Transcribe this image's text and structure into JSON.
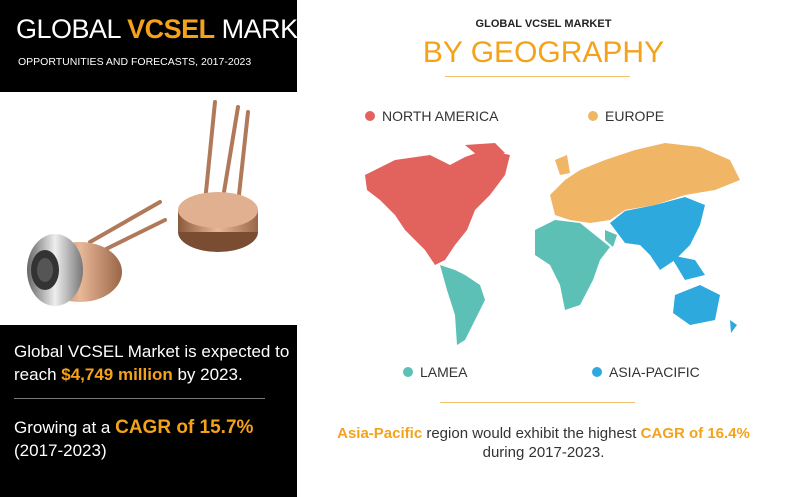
{
  "left_panel": {
    "title_pre": "GLOBAL ",
    "title_highlight": "VCSEL",
    "title_post": " MARKET",
    "subtitle": "OPPORTUNITIES AND FORECASTS, 2017-2023",
    "stat1_line1": "Global VCSEL Market is expected to",
    "stat1_pre": "reach ",
    "stat1_value": "$4,749 million",
    "stat1_post": " by 2023.",
    "stat2_pre": "Growing at a ",
    "stat2_value": "CAGR of 15.7%",
    "stat2_line2": "(2017-2023)"
  },
  "right_panel": {
    "kicker": "GLOBAL VCSEL MARKET",
    "heading": "BY GEOGRAPHY",
    "regions": [
      {
        "label": "NORTH AMERICA",
        "color": "#e2625e"
      },
      {
        "label": "EUROPE",
        "color": "#f0b565"
      },
      {
        "label": "LAMEA",
        "color": "#5cc0b6"
      },
      {
        "label": "ASIA-PACIFIC",
        "color": "#2ea9de"
      }
    ],
    "footer_region": "Asia-Pacific",
    "footer_mid": " region would exhibit the highest ",
    "footer_value": "CAGR of 16.4%",
    "footer_line2": "during 2017-2023."
  },
  "colors": {
    "accent": "#f5a21b",
    "left_bg": "#000000"
  }
}
